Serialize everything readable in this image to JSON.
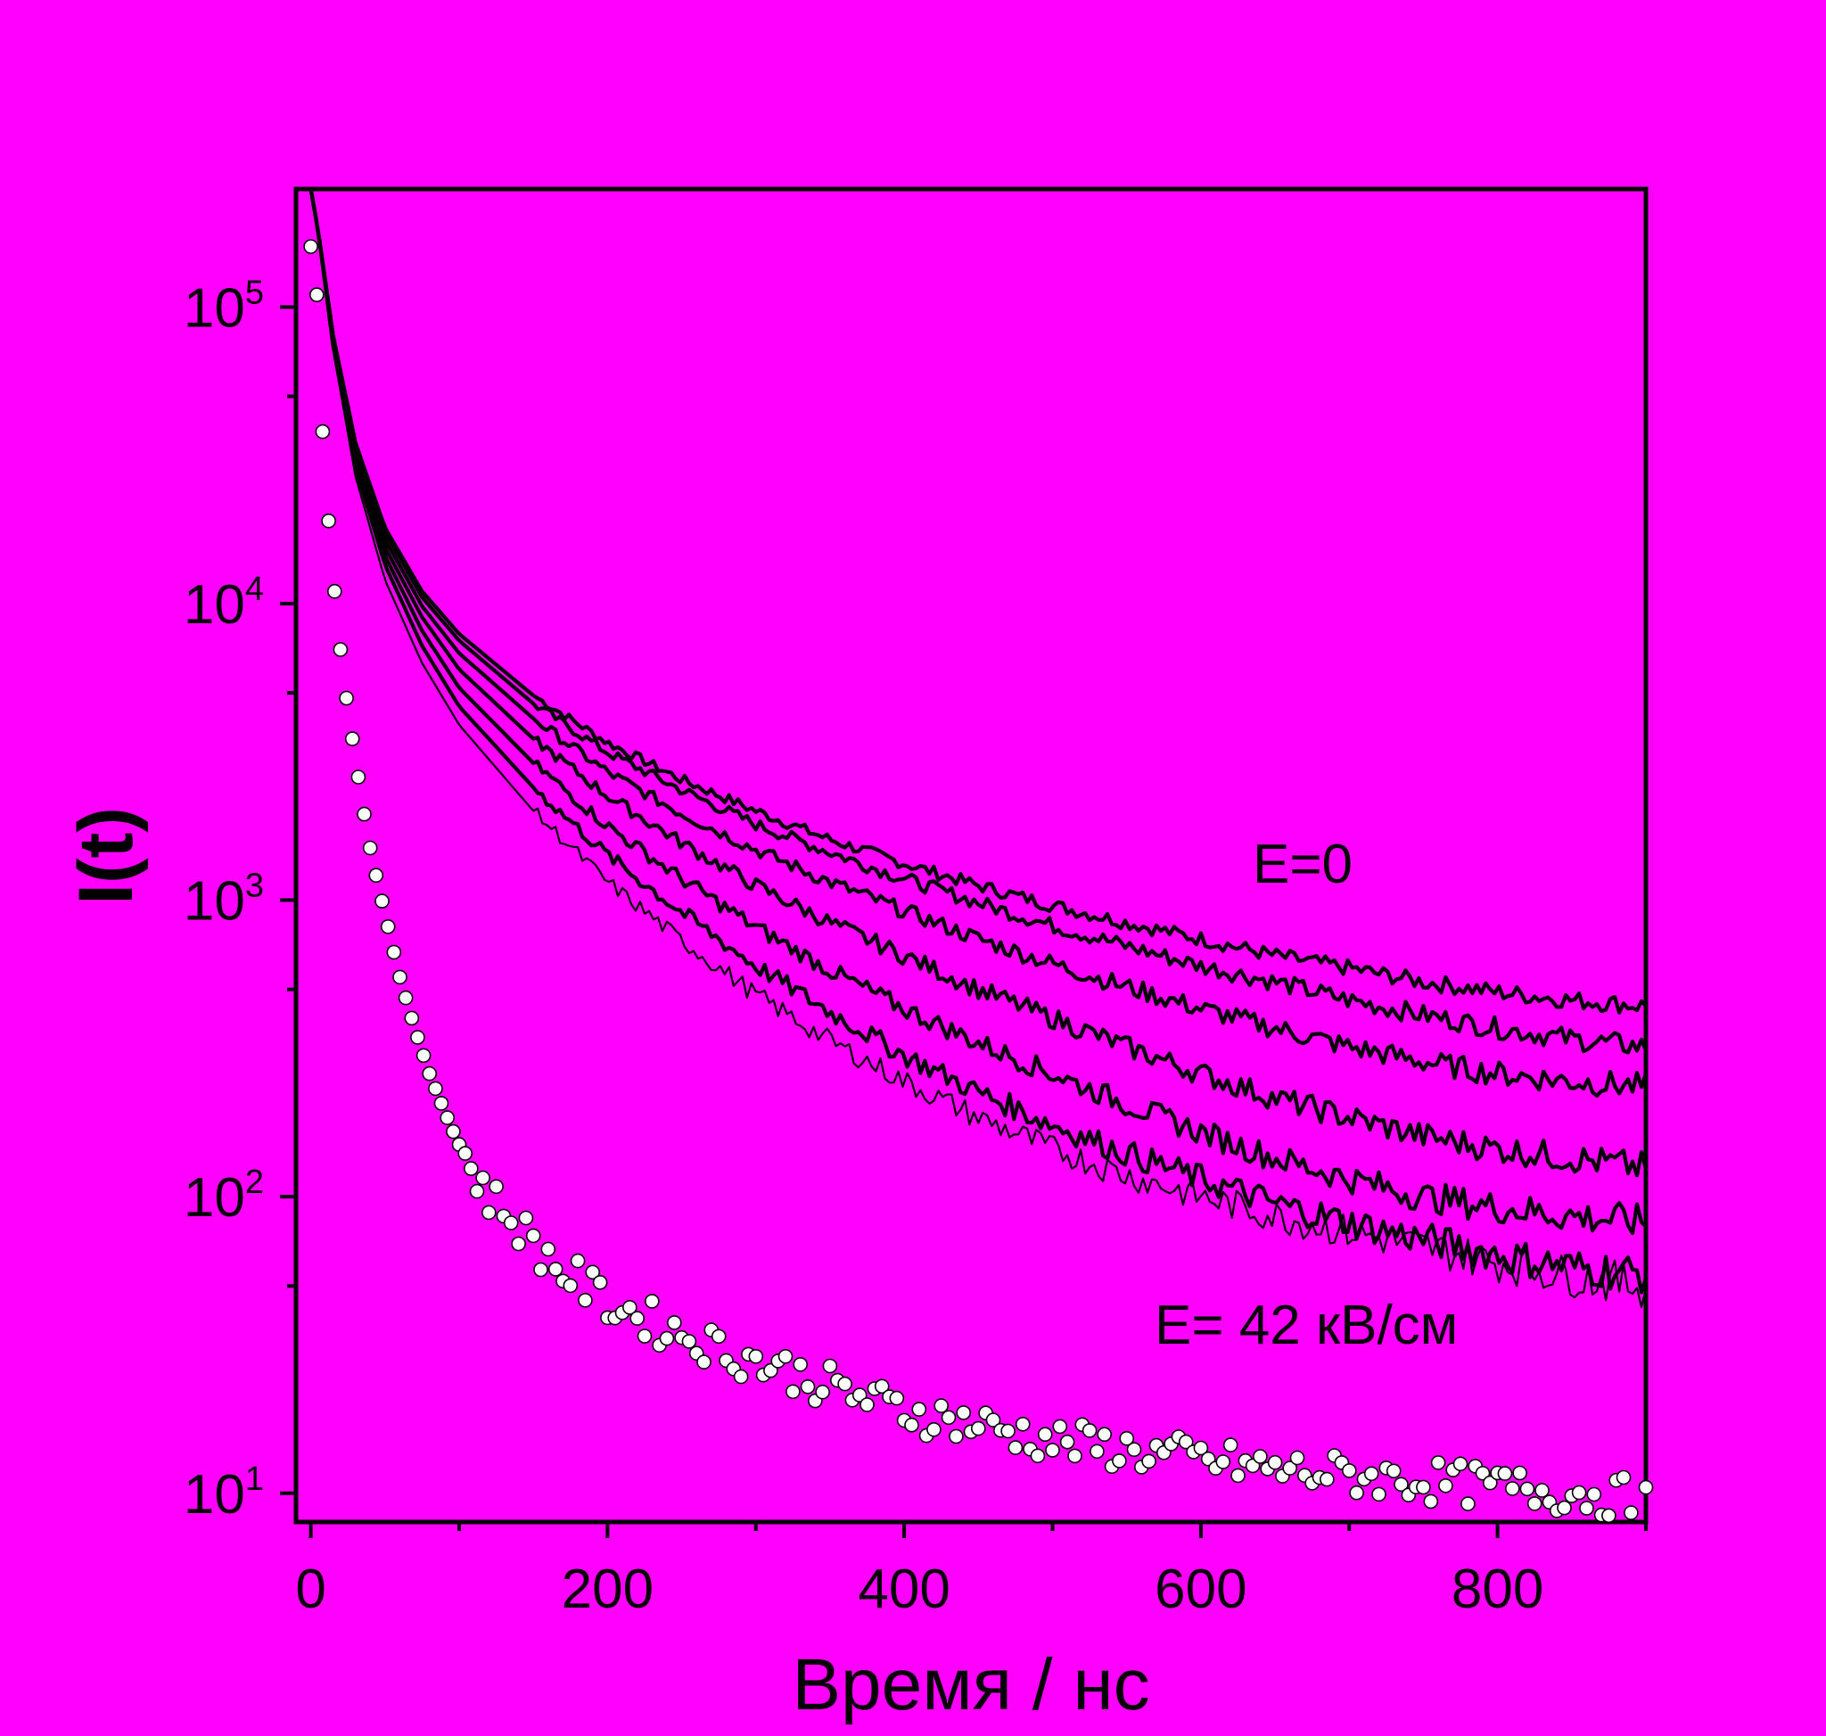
{
  "colors": {
    "background": "#ff00ff",
    "ink": "#000000",
    "markers": "#ffffff"
  },
  "chart_data": {
    "type": "line",
    "title": "",
    "xlabel": "Время / нс",
    "ylabel": "I(t)",
    "xlim": [
      -10,
      900
    ],
    "ylim": [
      8,
      250000
    ],
    "yscale": "log",
    "grid": false,
    "legend": "none",
    "x_ticks": [
      0,
      200,
      400,
      600,
      800
    ],
    "x_tick_labels": [
      "0",
      "200",
      "400",
      "600",
      "800"
    ],
    "y_ticks": [
      10,
      100,
      1000,
      10000,
      100000
    ],
    "y_tick_labels": [
      {
        "base": "10",
        "exp": "1"
      },
      {
        "base": "10",
        "exp": "2"
      },
      {
        "base": "10",
        "exp": "3"
      },
      {
        "base": "10",
        "exp": "4"
      },
      {
        "base": "10",
        "exp": "5"
      }
    ],
    "annotations": [
      {
        "text": "E=0",
        "x": 640,
        "y": 1050
      },
      {
        "text": "E= 42 кВ/см",
        "x": 570,
        "y": 30
      }
    ],
    "series": [
      {
        "stroke": 4.2,
        "points": [
          [
            0,
            250000
          ],
          [
            5,
            180000
          ],
          [
            15,
            80000
          ],
          [
            30,
            35000
          ],
          [
            50,
            18000
          ],
          [
            75,
            11000
          ],
          [
            100,
            7900
          ],
          [
            150,
            4900
          ],
          [
            200,
            3400
          ],
          [
            250,
            2550
          ],
          [
            300,
            2000
          ],
          [
            350,
            1600
          ],
          [
            400,
            1330
          ],
          [
            450,
            1120
          ],
          [
            500,
            960
          ],
          [
            550,
            840
          ],
          [
            600,
            740
          ],
          [
            650,
            650
          ],
          [
            700,
            590
          ],
          [
            750,
            530
          ],
          [
            800,
            490
          ],
          [
            850,
            460
          ],
          [
            900,
            440
          ]
        ]
      },
      {
        "stroke": 4.2,
        "points": [
          [
            0,
            250000
          ],
          [
            5,
            180000
          ],
          [
            15,
            80000
          ],
          [
            30,
            35000
          ],
          [
            50,
            17500
          ],
          [
            75,
            10500
          ],
          [
            100,
            7500
          ],
          [
            150,
            4600
          ],
          [
            200,
            3150
          ],
          [
            250,
            2350
          ],
          [
            300,
            1800
          ],
          [
            350,
            1450
          ],
          [
            400,
            1180
          ],
          [
            450,
            980
          ],
          [
            500,
            820
          ],
          [
            550,
            700
          ],
          [
            600,
            600
          ],
          [
            650,
            530
          ],
          [
            700,
            460
          ],
          [
            750,
            410
          ],
          [
            800,
            370
          ],
          [
            850,
            340
          ],
          [
            900,
            320
          ]
        ]
      },
      {
        "stroke": 4.2,
        "points": [
          [
            0,
            250000
          ],
          [
            5,
            180000
          ],
          [
            15,
            80000
          ],
          [
            30,
            34000
          ],
          [
            50,
            16500
          ],
          [
            75,
            9800
          ],
          [
            100,
            6800
          ],
          [
            150,
            4100
          ],
          [
            200,
            2700
          ],
          [
            250,
            1960
          ],
          [
            300,
            1480
          ],
          [
            350,
            1150
          ],
          [
            400,
            920
          ],
          [
            450,
            740
          ],
          [
            500,
            610
          ],
          [
            550,
            510
          ],
          [
            600,
            430
          ],
          [
            650,
            370
          ],
          [
            700,
            320
          ],
          [
            750,
            285
          ],
          [
            800,
            260
          ],
          [
            850,
            245
          ],
          [
            900,
            235
          ]
        ]
      },
      {
        "stroke": 4.2,
        "points": [
          [
            0,
            250000
          ],
          [
            5,
            180000
          ],
          [
            15,
            78000
          ],
          [
            30,
            33000
          ],
          [
            50,
            15500
          ],
          [
            75,
            9000
          ],
          [
            100,
            6000
          ],
          [
            150,
            3500
          ],
          [
            200,
            2250
          ],
          [
            250,
            1560
          ],
          [
            300,
            1120
          ],
          [
            350,
            840
          ],
          [
            400,
            650
          ],
          [
            450,
            500
          ],
          [
            500,
            400
          ],
          [
            550,
            320
          ],
          [
            600,
            260
          ],
          [
            650,
            215
          ],
          [
            700,
            185
          ],
          [
            750,
            160
          ],
          [
            800,
            145
          ],
          [
            850,
            135
          ],
          [
            900,
            125
          ]
        ]
      },
      {
        "stroke": 4.2,
        "points": [
          [
            0,
            250000
          ],
          [
            5,
            180000
          ],
          [
            15,
            76000
          ],
          [
            30,
            31000
          ],
          [
            50,
            14500
          ],
          [
            75,
            8100
          ],
          [
            100,
            5200
          ],
          [
            150,
            2900
          ],
          [
            200,
            1780
          ],
          [
            250,
            1180
          ],
          [
            300,
            810
          ],
          [
            350,
            580
          ],
          [
            400,
            430
          ],
          [
            450,
            330
          ],
          [
            500,
            260
          ],
          [
            550,
            205
          ],
          [
            600,
            165
          ],
          [
            650,
            135
          ],
          [
            700,
            115
          ],
          [
            750,
            100
          ],
          [
            800,
            92
          ],
          [
            850,
            86
          ],
          [
            900,
            82
          ]
        ]
      },
      {
        "stroke": 4.2,
        "points": [
          [
            0,
            250000
          ],
          [
            5,
            180000
          ],
          [
            15,
            74000
          ],
          [
            30,
            29000
          ],
          [
            50,
            13500
          ],
          [
            75,
            7200
          ],
          [
            100,
            4500
          ],
          [
            150,
            2400
          ],
          [
            200,
            1420
          ],
          [
            250,
            910
          ],
          [
            300,
            600
          ],
          [
            350,
            420
          ],
          [
            400,
            300
          ],
          [
            450,
            225
          ],
          [
            500,
            175
          ],
          [
            550,
            140
          ],
          [
            600,
            115
          ],
          [
            650,
            95
          ],
          [
            700,
            82
          ],
          [
            750,
            72
          ],
          [
            800,
            64
          ],
          [
            850,
            58
          ],
          [
            900,
            55
          ]
        ]
      },
      {
        "stroke": 2.2,
        "points": [
          [
            0,
            250000
          ],
          [
            5,
            180000
          ],
          [
            15,
            72000
          ],
          [
            30,
            27000
          ],
          [
            50,
            12000
          ],
          [
            75,
            6300
          ],
          [
            100,
            3900
          ],
          [
            150,
            2000
          ],
          [
            200,
            1150
          ],
          [
            250,
            730
          ],
          [
            300,
            480
          ],
          [
            350,
            335
          ],
          [
            400,
            245
          ],
          [
            450,
            185
          ],
          [
            500,
            145
          ],
          [
            550,
            118
          ],
          [
            600,
            100
          ],
          [
            650,
            86
          ],
          [
            700,
            76
          ],
          [
            750,
            68
          ],
          [
            800,
            60
          ],
          [
            850,
            54
          ],
          [
            900,
            50
          ]
        ]
      }
    ],
    "markers": {
      "points": [
        [
          0,
          160000
        ],
        [
          4,
          110000
        ],
        [
          8,
          38000
        ],
        [
          12,
          19000
        ],
        [
          16,
          11000
        ],
        [
          20,
          7000
        ],
        [
          24,
          4800
        ],
        [
          28,
          3500
        ],
        [
          32,
          2600
        ],
        [
          36,
          1950
        ],
        [
          40,
          1500
        ],
        [
          45,
          1150
        ],
        [
          50,
          900
        ],
        [
          55,
          700
        ],
        [
          60,
          550
        ],
        [
          65,
          450
        ],
        [
          70,
          370
        ],
        [
          75,
          310
        ],
        [
          80,
          260
        ],
        [
          85,
          225
        ],
        [
          90,
          195
        ],
        [
          95,
          170
        ],
        [
          100,
          150
        ],
        [
          105,
          135
        ],
        [
          110,
          120
        ],
        [
          115,
          110
        ],
        [
          120,
          100
        ],
        [
          130,
          90
        ],
        [
          140,
          80
        ],
        [
          150,
          70
        ],
        [
          160,
          62
        ],
        [
          170,
          56
        ],
        [
          180,
          52
        ],
        [
          190,
          48
        ],
        [
          200,
          44
        ],
        [
          220,
          40
        ],
        [
          240,
          36
        ],
        [
          260,
          33
        ],
        [
          280,
          30
        ],
        [
          300,
          28
        ],
        [
          330,
          25
        ],
        [
          360,
          22
        ],
        [
          400,
          19
        ],
        [
          450,
          17
        ],
        [
          500,
          15
        ],
        [
          550,
          14
        ],
        [
          600,
          13
        ],
        [
          650,
          12
        ],
        [
          700,
          11.5
        ],
        [
          750,
          11
        ],
        [
          800,
          10.5
        ],
        [
          850,
          10
        ],
        [
          900,
          9.5
        ]
      ]
    }
  }
}
